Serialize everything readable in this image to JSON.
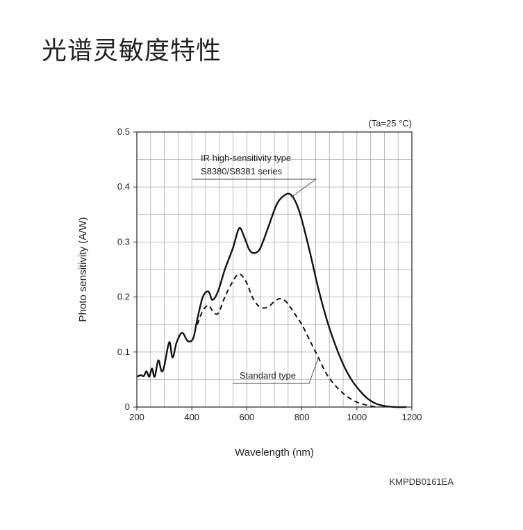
{
  "page": {
    "title": "光谱灵敏度特性"
  },
  "chart_data": {
    "type": "line",
    "condition": "(Ta=25 °C)",
    "xlabel": "Wavelength (nm)",
    "ylabel": "Photo sensitivity (A/W)",
    "xlim": [
      200,
      1200
    ],
    "ylim": [
      0,
      0.5
    ],
    "x_ticks": [
      200,
      400,
      600,
      800,
      1000,
      1200
    ],
    "x_tick_labels": [
      "200",
      "400",
      "600",
      "800",
      "1000",
      "1200"
    ],
    "y_ticks": [
      0,
      0.1,
      0.2,
      0.3,
      0.4,
      0.5
    ],
    "y_tick_labels": [
      "0",
      "0.1",
      "0.2",
      "0.3",
      "0.4",
      "0.5"
    ],
    "grid": true,
    "series": [
      {
        "name": "IR high-sensitivity type S8380/S8381 series",
        "style": "solid",
        "points": [
          [
            200,
            0.055
          ],
          [
            215,
            0.058
          ],
          [
            225,
            0.056
          ],
          [
            235,
            0.065
          ],
          [
            245,
            0.055
          ],
          [
            255,
            0.07
          ],
          [
            265,
            0.055
          ],
          [
            278,
            0.085
          ],
          [
            290,
            0.065
          ],
          [
            300,
            0.075
          ],
          [
            318,
            0.118
          ],
          [
            330,
            0.09
          ],
          [
            345,
            0.118
          ],
          [
            365,
            0.135
          ],
          [
            385,
            0.12
          ],
          [
            405,
            0.125
          ],
          [
            420,
            0.16
          ],
          [
            440,
            0.2
          ],
          [
            460,
            0.21
          ],
          [
            475,
            0.195
          ],
          [
            495,
            0.21
          ],
          [
            520,
            0.25
          ],
          [
            550,
            0.29
          ],
          [
            572,
            0.325
          ],
          [
            590,
            0.31
          ],
          [
            610,
            0.285
          ],
          [
            630,
            0.28
          ],
          [
            650,
            0.29
          ],
          [
            680,
            0.33
          ],
          [
            710,
            0.37
          ],
          [
            740,
            0.386
          ],
          [
            760,
            0.386
          ],
          [
            780,
            0.37
          ],
          [
            800,
            0.34
          ],
          [
            830,
            0.28
          ],
          [
            860,
            0.215
          ],
          [
            890,
            0.16
          ],
          [
            920,
            0.115
          ],
          [
            950,
            0.078
          ],
          [
            980,
            0.05
          ],
          [
            1010,
            0.03
          ],
          [
            1040,
            0.015
          ],
          [
            1070,
            0.006
          ],
          [
            1100,
            0.002
          ],
          [
            1140,
            0.0
          ],
          [
            1180,
            0.0
          ]
        ]
      },
      {
        "name": "Standard type",
        "style": "dashed",
        "points": [
          [
            420,
            0.15
          ],
          [
            440,
            0.175
          ],
          [
            460,
            0.185
          ],
          [
            475,
            0.175
          ],
          [
            495,
            0.17
          ],
          [
            520,
            0.2
          ],
          [
            545,
            0.225
          ],
          [
            565,
            0.24
          ],
          [
            580,
            0.24
          ],
          [
            600,
            0.225
          ],
          [
            620,
            0.2
          ],
          [
            640,
            0.185
          ],
          [
            660,
            0.18
          ],
          [
            680,
            0.183
          ],
          [
            700,
            0.192
          ],
          [
            720,
            0.197
          ],
          [
            740,
            0.193
          ],
          [
            760,
            0.18
          ],
          [
            780,
            0.165
          ],
          [
            800,
            0.15
          ],
          [
            830,
            0.12
          ],
          [
            860,
            0.09
          ],
          [
            890,
            0.06
          ],
          [
            920,
            0.04
          ],
          [
            950,
            0.025
          ],
          [
            980,
            0.014
          ],
          [
            1010,
            0.007
          ],
          [
            1040,
            0.003
          ],
          [
            1070,
            0.0
          ]
        ]
      }
    ],
    "annotations": [
      {
        "text_lines": [
          "IR high-sensitivity type",
          "S8380/S8381 series"
        ],
        "target_series": 0
      },
      {
        "text_lines": [
          "Standard type"
        ],
        "target_series": 1
      }
    ],
    "figure_code": "KMPDB0161EA"
  }
}
